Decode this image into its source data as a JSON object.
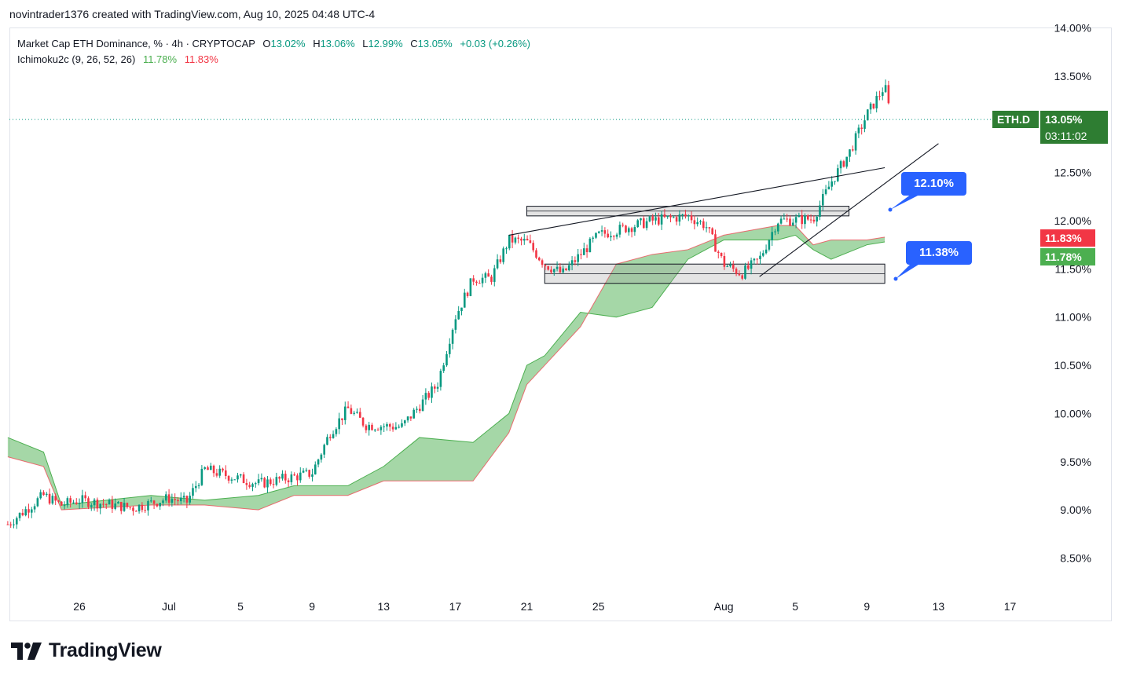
{
  "header": {
    "created_line": "novintrader1376 created with TradingView.com, Aug 10, 2025 04:48 UTC-4"
  },
  "legend": {
    "symbol_line": "Market Cap ETH Dominance, % · 4h · CRYPTOCAP",
    "o_label": "O",
    "o_value": "13.02%",
    "h_label": "H",
    "h_value": "13.06%",
    "l_label": "L",
    "l_value": "12.99%",
    "c_label": "C",
    "c_value": "13.05%",
    "change": "+0.03 (+0.26%)",
    "indicator_name": "Ichimoku2c (9, 26, 52, 26)",
    "ind_value_1": "11.78%",
    "ind_value_2": "11.83%"
  },
  "price_tags": {
    "symbol_tag": "ETH.D",
    "last_price": "13.05%",
    "countdown": "03:11:02",
    "span_b": "11.83%",
    "span_a": "11.78%"
  },
  "callouts": {
    "upper": "12.10%",
    "lower": "11.38%"
  },
  "brand": {
    "name": "TradingView"
  },
  "colors": {
    "up": "#089981",
    "down": "#f23645",
    "cloud_bull": "#4caf50",
    "callout": "#2962ff",
    "tag_green": "#2e7d32"
  },
  "chart_data": {
    "type": "candlestick",
    "title": "Market Cap ETH Dominance, % · 4h · CRYPTOCAP",
    "y_unit": "%",
    "ylim": [
      8.3,
      14.0
    ],
    "y_ticks": [
      "14.00%",
      "13.50%",
      "12.50%",
      "12.00%",
      "11.50%",
      "11.00%",
      "10.50%",
      "10.00%",
      "9.50%",
      "9.00%",
      "8.50%"
    ],
    "x_ticks": [
      "26",
      "Jul",
      "5",
      "9",
      "13",
      "17",
      "21",
      "25",
      "Aug",
      "5",
      "9",
      "13",
      "17"
    ],
    "last": {
      "open": 13.02,
      "high": 13.06,
      "low": 12.99,
      "close": 13.05,
      "change": 0.03,
      "change_pct": 0.26
    },
    "price_path": [
      {
        "date": "2025-06-22",
        "value": 8.85
      },
      {
        "date": "2025-06-24",
        "value": 9.15
      },
      {
        "date": "2025-06-25",
        "value": 9.05
      },
      {
        "date": "2025-06-26",
        "value": 9.1
      },
      {
        "date": "2025-06-29",
        "value": 9.02
      },
      {
        "date": "2025-07-01",
        "value": 9.12
      },
      {
        "date": "2025-07-02",
        "value": 9.08
      },
      {
        "date": "2025-07-03",
        "value": 9.42
      },
      {
        "date": "2025-07-06",
        "value": 9.27
      },
      {
        "date": "2025-07-09",
        "value": 9.38
      },
      {
        "date": "2025-07-10",
        "value": 9.8
      },
      {
        "date": "2025-07-11",
        "value": 10.05
      },
      {
        "date": "2025-07-12",
        "value": 9.88
      },
      {
        "date": "2025-07-14",
        "value": 9.86
      },
      {
        "date": "2025-07-16",
        "value": 10.3
      },
      {
        "date": "2025-07-17",
        "value": 11.0
      },
      {
        "date": "2025-07-18",
        "value": 11.4
      },
      {
        "date": "2025-07-19",
        "value": 11.4
      },
      {
        "date": "2025-07-20",
        "value": 11.8
      },
      {
        "date": "2025-07-21",
        "value": 11.78
      },
      {
        "date": "2025-07-22",
        "value": 11.55
      },
      {
        "date": "2025-07-23",
        "value": 11.45
      },
      {
        "date": "2025-07-25",
        "value": 11.85
      },
      {
        "date": "2025-07-28",
        "value": 12.0
      },
      {
        "date": "2025-07-30",
        "value": 12.05
      },
      {
        "date": "2025-07-31",
        "value": 11.95
      },
      {
        "date": "2025-08-01",
        "value": 11.55
      },
      {
        "date": "2025-08-02",
        "value": 11.45
      },
      {
        "date": "2025-08-03",
        "value": 11.6
      },
      {
        "date": "2025-08-04",
        "value": 12.0
      },
      {
        "date": "2025-08-06",
        "value": 12.02
      },
      {
        "date": "2025-08-07",
        "value": 12.4
      },
      {
        "date": "2025-08-08",
        "value": 12.7
      },
      {
        "date": "2025-08-09",
        "value": 13.1
      },
      {
        "date": "2025-08-10",
        "value": 13.4
      },
      {
        "date": "2025-08-10",
        "value": 13.05
      }
    ],
    "ichimoku": {
      "name": "Ichimoku2c (9, 26, 52, 26)",
      "span_a_last": 11.78,
      "span_b_last": 11.83,
      "span_a": [
        {
          "date": "2025-06-22",
          "value": 9.75
        },
        {
          "date": "2025-06-24",
          "value": 9.6
        },
        {
          "date": "2025-06-25",
          "value": 9.05
        },
        {
          "date": "2025-06-30",
          "value": 9.15
        },
        {
          "date": "2025-07-03",
          "value": 9.1
        },
        {
          "date": "2025-07-06",
          "value": 9.15
        },
        {
          "date": "2025-07-08",
          "value": 9.25
        },
        {
          "date": "2025-07-11",
          "value": 9.25
        },
        {
          "date": "2025-07-13",
          "value": 9.45
        },
        {
          "date": "2025-07-15",
          "value": 9.75
        },
        {
          "date": "2025-07-18",
          "value": 9.7
        },
        {
          "date": "2025-07-20",
          "value": 10.0
        },
        {
          "date": "2025-07-21",
          "value": 10.5
        },
        {
          "date": "2025-07-22",
          "value": 10.6
        },
        {
          "date": "2025-07-24",
          "value": 11.05
        },
        {
          "date": "2025-07-26",
          "value": 11.0
        },
        {
          "date": "2025-07-28",
          "value": 11.1
        },
        {
          "date": "2025-07-30",
          "value": 11.6
        },
        {
          "date": "2025-08-01",
          "value": 11.8
        },
        {
          "date": "2025-08-04",
          "value": 11.8
        },
        {
          "date": "2025-08-05",
          "value": 11.85
        },
        {
          "date": "2025-08-06",
          "value": 11.7
        },
        {
          "date": "2025-08-07",
          "value": 11.6
        },
        {
          "date": "2025-08-09",
          "value": 11.75
        },
        {
          "date": "2025-08-10",
          "value": 11.78
        }
      ],
      "span_b": [
        {
          "date": "2025-06-22",
          "value": 9.55
        },
        {
          "date": "2025-06-24",
          "value": 9.45
        },
        {
          "date": "2025-06-25",
          "value": 9.0
        },
        {
          "date": "2025-06-30",
          "value": 9.05
        },
        {
          "date": "2025-07-03",
          "value": 9.05
        },
        {
          "date": "2025-07-06",
          "value": 9.0
        },
        {
          "date": "2025-07-08",
          "value": 9.15
        },
        {
          "date": "2025-07-11",
          "value": 9.15
        },
        {
          "date": "2025-07-13",
          "value": 9.3
        },
        {
          "date": "2025-07-15",
          "value": 9.3
        },
        {
          "date": "2025-07-18",
          "value": 9.3
        },
        {
          "date": "2025-07-20",
          "value": 9.8
        },
        {
          "date": "2025-07-21",
          "value": 10.3
        },
        {
          "date": "2025-07-22",
          "value": 10.5
        },
        {
          "date": "2025-07-24",
          "value": 10.9
        },
        {
          "date": "2025-07-26",
          "value": 11.55
        },
        {
          "date": "2025-07-28",
          "value": 11.65
        },
        {
          "date": "2025-07-30",
          "value": 11.7
        },
        {
          "date": "2025-08-01",
          "value": 11.85
        },
        {
          "date": "2025-08-04",
          "value": 11.95
        },
        {
          "date": "2025-08-05",
          "value": 11.95
        },
        {
          "date": "2025-08-06",
          "value": 11.75
        },
        {
          "date": "2025-08-07",
          "value": 11.8
        },
        {
          "date": "2025-08-09",
          "value": 11.8
        },
        {
          "date": "2025-08-10",
          "value": 11.83
        }
      ]
    },
    "zones": [
      {
        "from": "2025-07-21",
        "to": "2025-08-08",
        "low": 12.05,
        "high": 12.15
      },
      {
        "from": "2025-07-22",
        "to": "2025-08-10",
        "low": 11.35,
        "high": 11.55
      }
    ],
    "trendlines": [
      {
        "from": {
          "date": "2025-07-20",
          "value": 11.85
        },
        "to": {
          "date": "2025-08-10",
          "value": 12.55
        }
      },
      {
        "from": {
          "date": "2025-08-03",
          "value": 11.42
        },
        "to": {
          "date": "2025-08-13",
          "value": 12.8
        }
      }
    ],
    "grid": false,
    "last_price_line": 13.05
  }
}
